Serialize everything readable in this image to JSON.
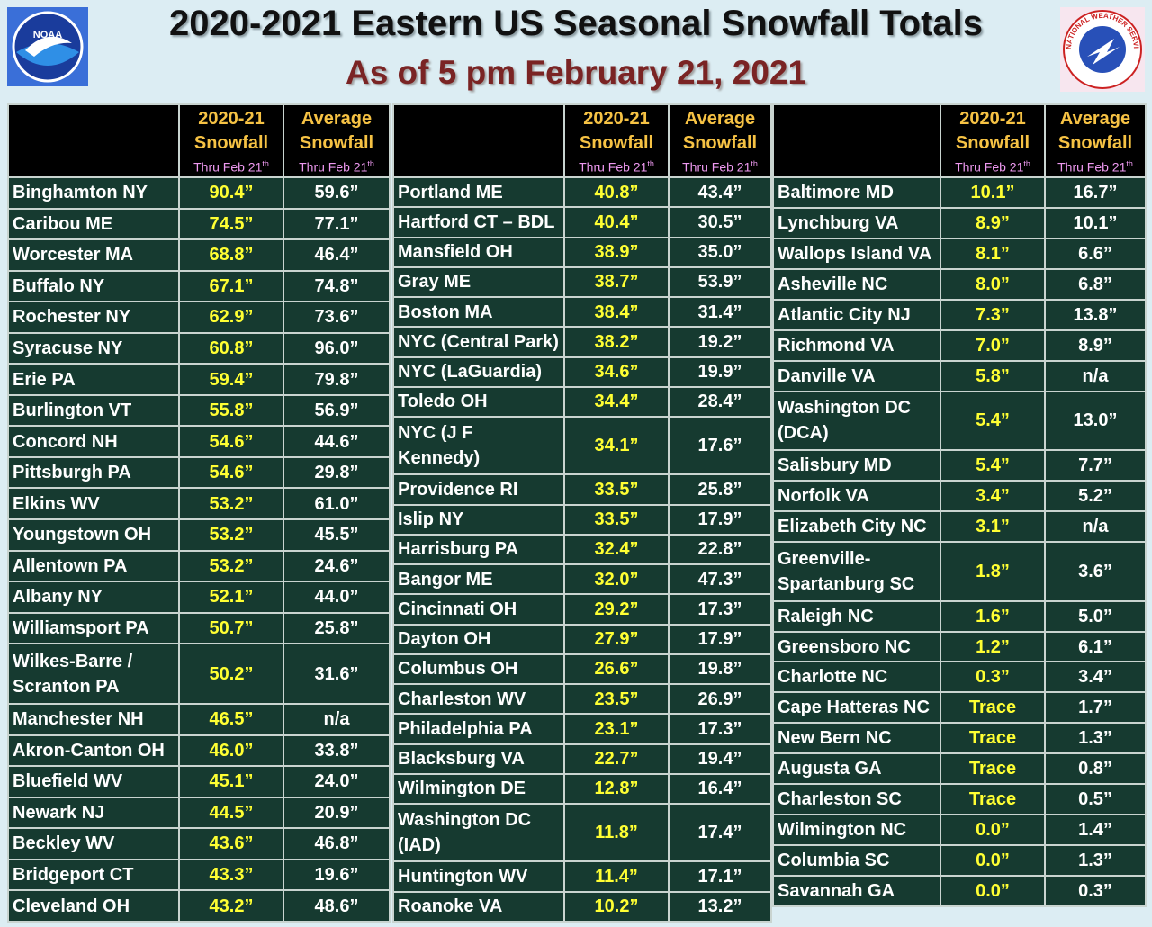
{
  "header": {
    "title": "2020-2021 Eastern US Seasonal Snowfall Totals",
    "subtitle": "As of 5 pm February 21, 2021"
  },
  "logos": {
    "left": "NOAA",
    "right": "NATIONAL WEATHER SERVICE"
  },
  "tables": [
    {
      "headers": [
        {
          "line1": "2020-21",
          "line2": "Snowfall",
          "thru": "Thru Feb 21",
          "sup": "th"
        },
        {
          "line1": "Average",
          "line2": "Snowfall",
          "thru": "Thru Feb 21",
          "sup": "th"
        }
      ],
      "rows": [
        [
          "Binghamton NY",
          "90.4”",
          "59.6”"
        ],
        [
          "Caribou ME",
          "74.5”",
          "77.1”"
        ],
        [
          "Worcester MA",
          "68.8”",
          "46.4”"
        ],
        [
          "Buffalo NY",
          "67.1”",
          "74.8”"
        ],
        [
          "Rochester NY",
          "62.9”",
          "73.6”"
        ],
        [
          "Syracuse NY",
          "60.8”",
          "96.0”"
        ],
        [
          "Erie PA",
          "59.4”",
          "79.8”"
        ],
        [
          "Burlington VT",
          "55.8”",
          "56.9”"
        ],
        [
          "Concord NH",
          "54.6”",
          "44.6”"
        ],
        [
          "Pittsburgh PA",
          "54.6”",
          "29.8”"
        ],
        [
          "Elkins WV",
          "53.2”",
          "61.0”"
        ],
        [
          "Youngstown OH",
          "53.2”",
          "45.5”"
        ],
        [
          "Allentown PA",
          "53.2”",
          "24.6”"
        ],
        [
          "Albany NY",
          "52.1”",
          "44.0”"
        ],
        [
          "Williamsport PA",
          "50.7”",
          "25.8”"
        ],
        [
          [
            "Wilkes-Barre /",
            "Scranton PA"
          ],
          "50.2”",
          "31.6”"
        ],
        [
          "Manchester NH",
          "46.5”",
          "n/a"
        ],
        [
          "Akron-Canton OH",
          "46.0”",
          "33.8”"
        ],
        [
          "Bluefield WV",
          "45.1”",
          "24.0”"
        ],
        [
          "Newark NJ",
          "44.5”",
          "20.9”"
        ],
        [
          "Beckley WV",
          "43.6”",
          "46.8”"
        ],
        [
          "Bridgeport CT",
          "43.3”",
          "19.6”"
        ],
        [
          "Cleveland OH",
          "43.2”",
          "48.6”"
        ]
      ]
    },
    {
      "headers": [
        {
          "line1": "2020-21",
          "line2": "Snowfall",
          "thru": "Thru Feb 21",
          "sup": "th"
        },
        {
          "line1": "Average",
          "line2": "Snowfall",
          "thru": "Thru Feb 21",
          "sup": "th"
        }
      ],
      "rows": [
        [
          "Portland ME",
          "40.8”",
          "43.4”"
        ],
        [
          "Hartford CT – BDL",
          "40.4”",
          "30.5”"
        ],
        [
          "Mansfield OH",
          "38.9”",
          "35.0”"
        ],
        [
          "Gray ME",
          "38.7”",
          "53.9”"
        ],
        [
          "Boston MA",
          "38.4”",
          "31.4”"
        ],
        [
          "NYC (Central Park)",
          "38.2”",
          "19.2”"
        ],
        [
          "NYC (LaGuardia)",
          "34.6”",
          "19.9”"
        ],
        [
          "Toledo OH",
          "34.4”",
          "28.4”"
        ],
        [
          "NYC (J F Kennedy)",
          "34.1”",
          "17.6”"
        ],
        [
          "Providence RI",
          "33.5”",
          "25.8”"
        ],
        [
          "Islip NY",
          "33.5”",
          "17.9”"
        ],
        [
          "Harrisburg PA",
          "32.4”",
          "22.8”"
        ],
        [
          "Bangor ME",
          "32.0”",
          "47.3”"
        ],
        [
          "Cincinnati OH",
          "29.2”",
          "17.3”"
        ],
        [
          "Dayton OH",
          "27.9”",
          "17.9”"
        ],
        [
          "Columbus OH",
          "26.6”",
          "19.8”"
        ],
        [
          "Charleston WV",
          "23.5”",
          "26.9”"
        ],
        [
          "Philadelphia PA",
          "23.1”",
          "17.3”"
        ],
        [
          "Blacksburg VA",
          "22.7”",
          "19.4”"
        ],
        [
          "Wilmington DE",
          "12.8”",
          "16.4”"
        ],
        [
          [
            "Washington DC",
            "(IAD)"
          ],
          "11.8”",
          "17.4”"
        ],
        [
          "Huntington WV",
          "11.4”",
          "17.1”"
        ],
        [
          "Roanoke VA",
          "10.2”",
          "13.2”"
        ]
      ]
    },
    {
      "headers": [
        {
          "line1": "2020-21",
          "line2": "Snowfall",
          "thru": "Thru Feb 21",
          "sup": "th"
        },
        {
          "line1": "Average",
          "line2": "Snowfall",
          "thru": "Thru Feb 21",
          "sup": "th"
        }
      ],
      "rows": [
        [
          "Baltimore MD",
          "10.1”",
          "16.7”"
        ],
        [
          "Lynchburg VA",
          "8.9”",
          "10.1”"
        ],
        [
          "Wallops Island VA",
          "8.1”",
          "6.6”"
        ],
        [
          "Asheville NC",
          "8.0”",
          "6.8”"
        ],
        [
          "Atlantic City NJ",
          "7.3”",
          "13.8”"
        ],
        [
          "Richmond VA",
          "7.0”",
          "8.9”"
        ],
        [
          "Danville VA",
          "5.8”",
          "n/a"
        ],
        [
          [
            "Washington DC",
            "(DCA)"
          ],
          "5.4”",
          "13.0”"
        ],
        [
          "Salisbury MD",
          "5.4”",
          "7.7”"
        ],
        [
          "Norfolk VA",
          "3.4”",
          "5.2”"
        ],
        [
          "Elizabeth City NC",
          "3.1”",
          "n/a"
        ],
        [
          [
            "Greenville-",
            "Spartanburg SC"
          ],
          "1.8”",
          "3.6”"
        ],
        [
          "Raleigh NC",
          "1.6”",
          "5.0”"
        ],
        [
          "Greensboro NC",
          "1.2”",
          "6.1”"
        ],
        [
          "Charlotte NC",
          "0.3”",
          "3.4”"
        ],
        [
          "Cape Hatteras NC",
          "Trace",
          "1.7”"
        ],
        [
          "New Bern NC",
          "Trace",
          "1.3”"
        ],
        [
          "Augusta GA",
          "Trace",
          "0.8”"
        ],
        [
          "Charleston SC",
          "Trace",
          "0.5”"
        ],
        [
          "Wilmington NC",
          "0.0”",
          "1.4”"
        ],
        [
          "Columbia SC",
          "0.0”",
          "1.3”"
        ],
        [
          "Savannah GA",
          "0.0”",
          "0.3”"
        ]
      ]
    }
  ]
}
